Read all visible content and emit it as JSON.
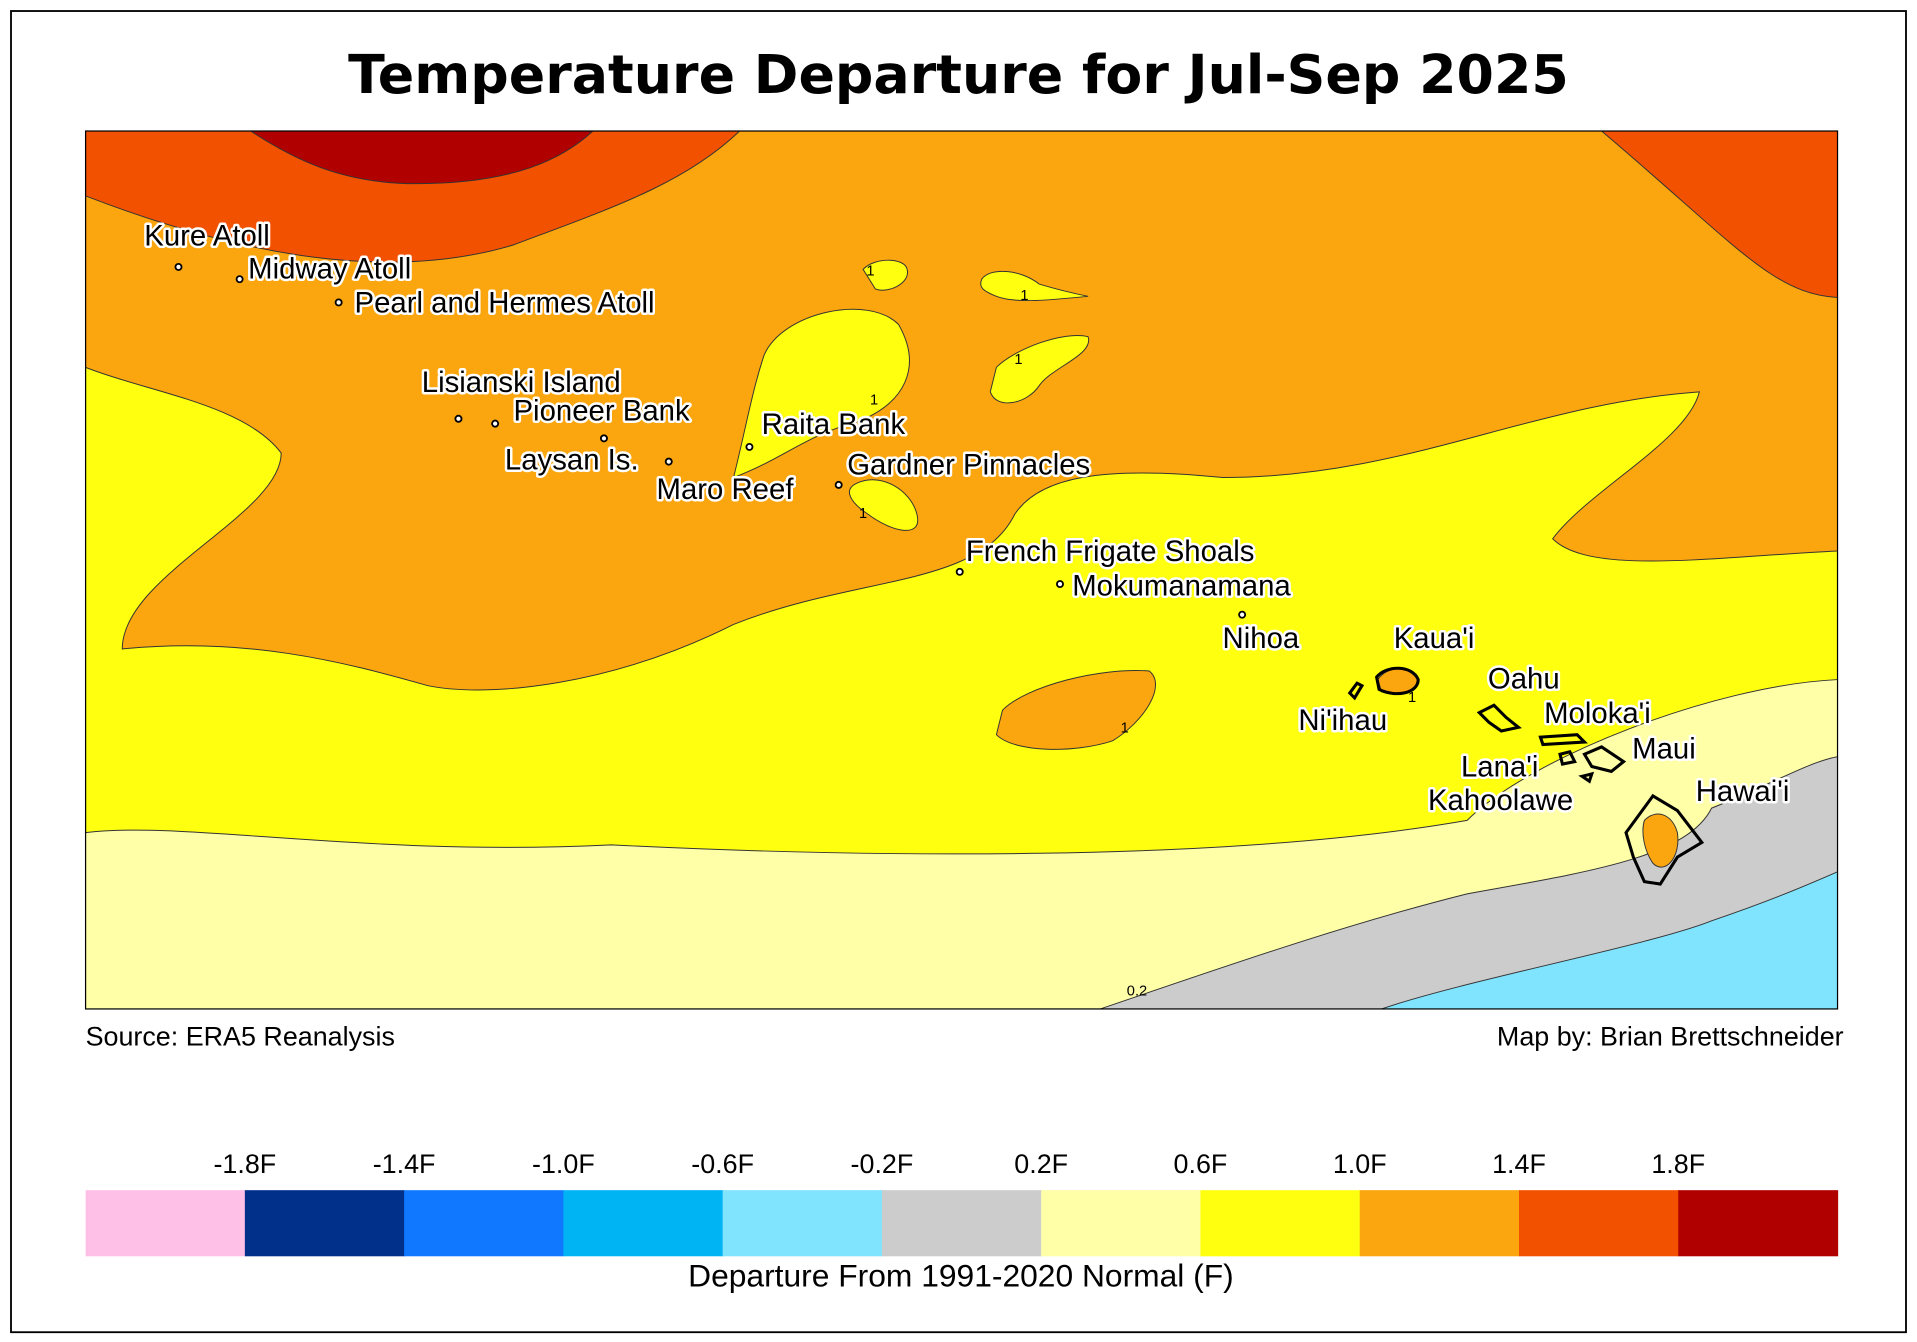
{
  "title": "Temperature Departure for Jul-Sep 2025",
  "source": "Source: ERA5 Reanalysis",
  "credit": "Map by: Brian Brettschneider",
  "places": [
    "Kure Atoll",
    "Midway Atoll",
    "Pearl and Hermes Atoll",
    "Lisianski Island",
    "Pioneer Bank",
    "Raita Bank",
    "Laysan Is.",
    "Maro Reef",
    "Gardner Pinnacles",
    "French Frigate Shoals",
    "Mokumanamana",
    "Nihoa",
    "Kaua'i",
    "Oahu",
    "Ni'ihau",
    "Moloka'i",
    "Maui",
    "Lana'i",
    "Kahoolawe",
    "Hawai'i"
  ],
  "contour_labels": [
    "1",
    "1",
    "1",
    "1",
    "1",
    "1",
    "1",
    "0.2"
  ],
  "legend": {
    "title": "Departure From 1991-2020 Normal (F)",
    "lim": [
      -2.2,
      2.2
    ],
    "colors": [
      "#ffc0e8",
      "#00308a",
      "#1078ff",
      "#00b4f4",
      "#80e4ff",
      "#cccccc",
      "#ffffa8",
      "#ffff10",
      "#fca60f",
      "#f25100",
      "#b00000"
    ],
    "ticks": [
      {
        "value": -1.8,
        "label": "-1.8F"
      },
      {
        "value": -1.4,
        "label": "-1.4F"
      },
      {
        "value": -1.0,
        "label": "-1.0F"
      },
      {
        "value": -0.6,
        "label": "-0.6F"
      },
      {
        "value": -0.2,
        "label": "-0.2F"
      },
      {
        "value": 0.2,
        "label": "0.2F"
      },
      {
        "value": 0.6,
        "label": "0.6F"
      },
      {
        "value": 1.0,
        "label": "1.0F"
      },
      {
        "value": 1.4,
        "label": "1.4F"
      },
      {
        "value": 1.8,
        "label": "1.8F"
      }
    ]
  }
}
